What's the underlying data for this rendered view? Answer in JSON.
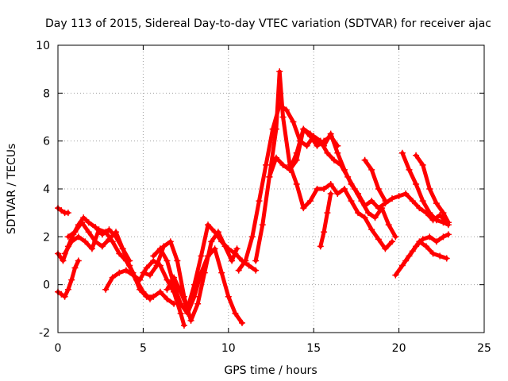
{
  "chart_data": {
    "type": "scatter",
    "title": "Day 113 of 2015, Sidereal Day-to-day VTEC variation (SDTVAR) for receiver ajac",
    "xlabel": "GPS time / hours",
    "ylabel": "SDTVAR / TECUs",
    "xlim": [
      0,
      25
    ],
    "ylim": [
      -2,
      10
    ],
    "xticks": [
      "0",
      "5",
      "10",
      "15",
      "20",
      "25"
    ],
    "yticks": [
      "-2",
      "0",
      "2",
      "4",
      "6",
      "8",
      "10"
    ],
    "grid": true,
    "marker": "+",
    "color": "#ff0000",
    "series": [
      {
        "x": [
          0,
          0.2,
          0.4,
          0.6
        ],
        "y": [
          3.2,
          3.1,
          3.0,
          3.0
        ]
      },
      {
        "x": [
          0,
          0.3,
          0.6,
          0.9,
          1.2,
          1.5,
          1.8,
          2.2,
          2.6,
          3.0,
          3.4,
          3.8,
          4.2
        ],
        "y": [
          1.3,
          1.0,
          1.6,
          2.1,
          2.5,
          2.8,
          2.6,
          2.4,
          2.1,
          2.3,
          2.0,
          1.5,
          1.0
        ]
      },
      {
        "x": [
          0,
          0.2,
          0.4,
          0.6,
          0.8,
          1.0,
          1.2
        ],
        "y": [
          -0.3,
          -0.4,
          -0.5,
          -0.2,
          0.2,
          0.7,
          1.0
        ]
      },
      {
        "x": [
          0.4,
          0.8,
          1.2,
          1.6,
          2.0,
          2.4,
          2.8,
          3.2,
          3.6,
          4.0,
          4.4,
          4.8,
          5.2,
          5.6,
          6.0,
          6.4,
          6.8
        ],
        "y": [
          1.3,
          1.8,
          2.0,
          1.8,
          1.5,
          2.3,
          2.2,
          1.8,
          1.3,
          1.0,
          0.5,
          -0.2,
          -0.5,
          -0.5,
          -0.3,
          -0.6,
          -0.8
        ]
      },
      {
        "x": [
          0.6,
          1.0,
          1.4,
          1.8,
          2.2,
          2.6,
          3.0,
          3.4,
          3.8,
          4.2,
          4.6,
          5.0,
          5.4
        ],
        "y": [
          2.0,
          2.2,
          2.6,
          2.2,
          1.8,
          1.6,
          1.9,
          2.2,
          1.5,
          0.8,
          0.2,
          -0.3,
          -0.6
        ]
      },
      {
        "x": [
          2.8,
          3.2,
          3.6,
          4.0,
          4.4,
          4.8,
          5.2,
          5.6,
          6.0,
          6.4,
          6.8,
          7.2,
          7.4
        ],
        "y": [
          -0.2,
          0.3,
          0.5,
          0.6,
          0.4,
          0.2,
          0.7,
          1.0,
          0.8,
          0.2,
          -0.3,
          -1.2,
          -1.7
        ]
      },
      {
        "x": [
          5.0,
          5.4,
          5.8,
          6.2,
          6.6,
          7.0,
          7.4,
          7.8,
          8.2,
          8.6,
          9.0,
          9.4,
          9.8,
          10.2,
          10.5
        ],
        "y": [
          0.5,
          0.4,
          0.8,
          1.6,
          1.8,
          1.0,
          -0.5,
          -1.5,
          -0.8,
          0.5,
          1.8,
          2.2,
          1.6,
          1.0,
          1.5
        ]
      },
      {
        "x": [
          5.6,
          6.0,
          6.4,
          6.8,
          7.2,
          7.6,
          8.0,
          8.4,
          8.8,
          9.2,
          9.6,
          10.0,
          10.4,
          10.8
        ],
        "y": [
          1.2,
          1.5,
          1.0,
          0.0,
          -0.8,
          -1.2,
          -0.5,
          0.5,
          1.2,
          1.5,
          0.5,
          -0.5,
          -1.2,
          -1.6
        ]
      },
      {
        "x": [
          6.4,
          6.8,
          7.2,
          7.6,
          8.0,
          8.4,
          8.8,
          9.2,
          9.6,
          10.0,
          10.4,
          10.8,
          11.2,
          11.6
        ],
        "y": [
          -0.2,
          0.3,
          -0.3,
          -1.0,
          0.0,
          1.2,
          2.5,
          2.2,
          1.8,
          1.5,
          1.3,
          1.0,
          0.8,
          0.6
        ]
      },
      {
        "x": [
          10.6,
          11.0,
          11.4,
          11.8,
          12.2,
          12.6,
          13.0,
          13.4,
          13.8,
          14.2,
          14.6,
          15.0,
          15.4,
          15.8,
          16.2,
          16.6,
          17.0,
          17.4,
          17.8,
          18.2,
          18.6,
          19.0,
          19.4,
          19.8
        ],
        "y": [
          0.6,
          1.0,
          2.0,
          3.5,
          5.0,
          6.5,
          7.5,
          7.3,
          6.8,
          6.0,
          5.8,
          6.2,
          6.0,
          5.5,
          5.2,
          5.0,
          4.5,
          4.0,
          3.5,
          3.0,
          2.8,
          3.2,
          2.5,
          2.0
        ]
      },
      {
        "x": [
          11.6,
          12.0,
          12.4,
          12.8,
          13.0,
          13.2,
          13.6,
          14.0,
          14.4,
          14.8,
          15.2,
          15.6,
          16.0,
          16.4,
          16.8,
          17.2,
          17.6,
          18.0,
          18.4,
          18.8,
          19.2,
          19.6
        ],
        "y": [
          1.0,
          2.5,
          4.5,
          6.5,
          8.9,
          7.0,
          5.0,
          4.2,
          3.2,
          3.5,
          4.0,
          4.0,
          4.2,
          3.8,
          4.0,
          3.5,
          3.0,
          2.8,
          2.3,
          1.9,
          1.5,
          1.8
        ]
      },
      {
        "x": [
          12.4,
          12.8,
          13.2,
          13.6,
          14.0,
          14.4,
          14.8,
          15.2,
          15.6,
          16.0,
          16.4,
          16.8,
          17.2,
          17.6,
          18.0,
          18.4,
          18.8,
          19.2,
          19.6,
          20.0,
          20.4,
          20.8,
          21.2,
          21.6,
          22.0,
          22.4,
          22.8
        ],
        "y": [
          4.5,
          5.3,
          5.0,
          4.8,
          5.2,
          6.5,
          6.3,
          6.0,
          5.8,
          6.3,
          5.5,
          4.8,
          4.2,
          3.8,
          3.3,
          3.5,
          3.2,
          3.4,
          3.6,
          3.7,
          3.8,
          3.5,
          3.2,
          3.0,
          2.7,
          2.9,
          2.6
        ]
      },
      {
        "x": [
          13.6,
          14.0,
          14.4,
          14.8,
          15.2,
          15.6,
          16.0,
          16.4
        ],
        "y": [
          4.8,
          5.5,
          6.5,
          6.2,
          5.8,
          6.0,
          6.2,
          5.8
        ]
      },
      {
        "x": [
          15.4,
          15.6,
          15.8,
          16.0
        ],
        "y": [
          1.6,
          2.2,
          3.0,
          3.8
        ]
      },
      {
        "x": [
          18.0,
          18.4,
          18.8,
          19.2
        ],
        "y": [
          5.2,
          4.8,
          4.0,
          3.5
        ]
      },
      {
        "x": [
          20.2,
          20.6,
          21.0,
          21.4,
          21.8,
          22.2,
          22.6,
          22.9
        ],
        "y": [
          5.5,
          4.8,
          4.2,
          3.5,
          3.0,
          2.7,
          2.6,
          2.5
        ]
      },
      {
        "x": [
          21.0,
          21.4,
          21.8,
          22.2,
          22.6,
          22.9
        ],
        "y": [
          5.4,
          5.0,
          4.0,
          3.4,
          3.0,
          2.6
        ]
      },
      {
        "x": [
          19.8,
          20.2,
          20.6,
          21.0,
          21.4,
          21.8,
          22.2,
          22.6,
          22.9
        ],
        "y": [
          0.4,
          0.8,
          1.2,
          1.6,
          1.9,
          2.0,
          1.8,
          2.0,
          2.1
        ]
      },
      {
        "x": [
          20.4,
          20.8,
          21.2,
          21.6,
          22.0,
          22.4,
          22.8
        ],
        "y": [
          1.0,
          1.4,
          1.8,
          1.6,
          1.3,
          1.2,
          1.1
        ]
      }
    ]
  }
}
